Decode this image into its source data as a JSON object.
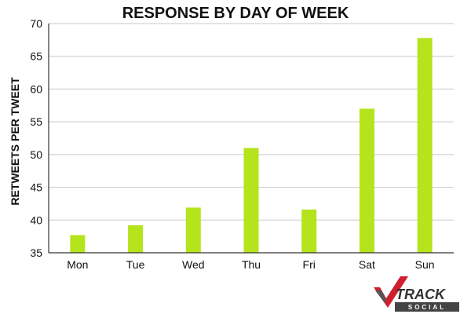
{
  "chart_data": {
    "type": "bar",
    "title": "RESPONSE BY DAY OF WEEK",
    "xlabel": "",
    "ylabel": "RETWEETS PER TWEET",
    "categories": [
      "Mon",
      "Tue",
      "Wed",
      "Thu",
      "Fri",
      "Sat",
      "Sun"
    ],
    "values": [
      37.7,
      39.2,
      41.9,
      51.0,
      41.6,
      57.0,
      67.8
    ],
    "ylim": [
      35,
      70
    ],
    "yticks": [
      35,
      40,
      45,
      50,
      55,
      60,
      65,
      70
    ],
    "grid": true,
    "legend": "none",
    "bar_color": "#b5e31c",
    "grid_color": "#c8c8c8"
  },
  "logo": {
    "brand": "TRACK",
    "sub": "SOCIAL",
    "accent_color": "#d01f2e"
  }
}
